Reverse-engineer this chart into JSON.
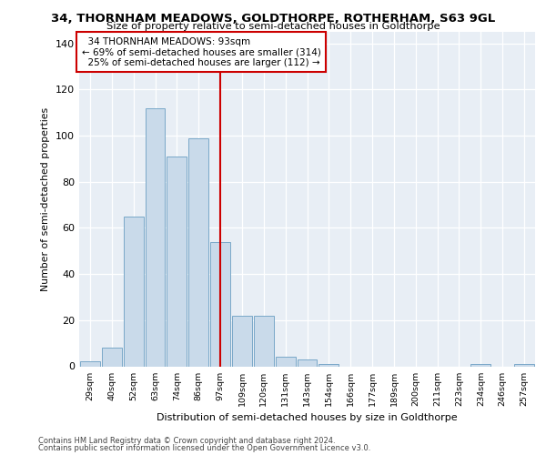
{
  "title1": "34, THORNHAM MEADOWS, GOLDTHORPE, ROTHERHAM, S63 9GL",
  "title2": "Size of property relative to semi-detached houses in Goldthorpe",
  "xlabel": "Distribution of semi-detached houses by size in Goldthorpe",
  "ylabel": "Number of semi-detached properties",
  "categories": [
    "29sqm",
    "40sqm",
    "52sqm",
    "63sqm",
    "74sqm",
    "86sqm",
    "97sqm",
    "109sqm",
    "120sqm",
    "131sqm",
    "143sqm",
    "154sqm",
    "166sqm",
    "177sqm",
    "189sqm",
    "200sqm",
    "211sqm",
    "223sqm",
    "234sqm",
    "246sqm",
    "257sqm"
  ],
  "bar_heights": [
    2,
    8,
    65,
    112,
    91,
    99,
    54,
    22,
    22,
    4,
    3,
    1,
    0,
    0,
    0,
    0,
    0,
    0,
    1,
    0,
    1
  ],
  "bar_color": "#c9daea",
  "bar_edge_color": "#7aa8c8",
  "subject_label": "34 THORNHAM MEADOWS: 93sqm",
  "pct_smaller": 69,
  "n_smaller": 314,
  "pct_larger": 25,
  "n_larger": 112,
  "vline_color": "#cc0000",
  "annotation_box_edge": "#cc0000",
  "ylim": [
    0,
    145
  ],
  "yticks": [
    0,
    20,
    40,
    60,
    80,
    100,
    120,
    140
  ],
  "background_color": "#e8eef5",
  "footer1": "Contains HM Land Registry data © Crown copyright and database right 2024.",
  "footer2": "Contains public sector information licensed under the Open Government Licence v3.0."
}
